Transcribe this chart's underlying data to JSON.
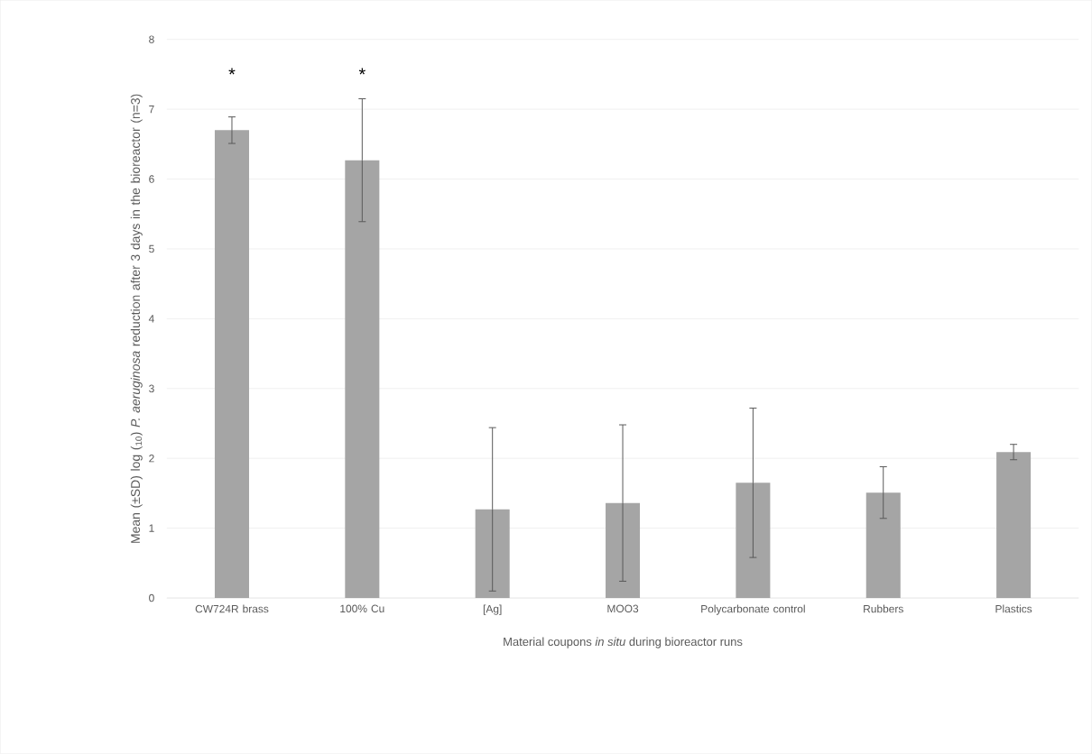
{
  "chart_data": {
    "type": "bar",
    "xlabel": "Material coupons *in situ* during bioreactor runs",
    "ylabel": "Mean (±SD) log ($_{10}$) *P. aeruginosa* reduction after 3 days in the bioreactor (n=3)",
    "categories": [
      "CW724R brass",
      "100% Cu",
      "[Ag]",
      "MOO3",
      "Polycarbonate control",
      "Rubbers",
      "Plastics"
    ],
    "values": [
      6.7,
      6.27,
      1.27,
      1.36,
      1.65,
      1.51,
      2.09
    ],
    "errors": [
      0.19,
      0.88,
      1.17,
      1.12,
      1.07,
      0.37,
      0.11
    ],
    "color": "#a5a5a5",
    "ylim": [
      0,
      8
    ],
    "yticks": [
      0,
      1,
      2,
      3,
      4,
      5,
      6,
      7,
      8
    ],
    "grid": "y",
    "annotations": [
      "*",
      "*"
    ]
  }
}
